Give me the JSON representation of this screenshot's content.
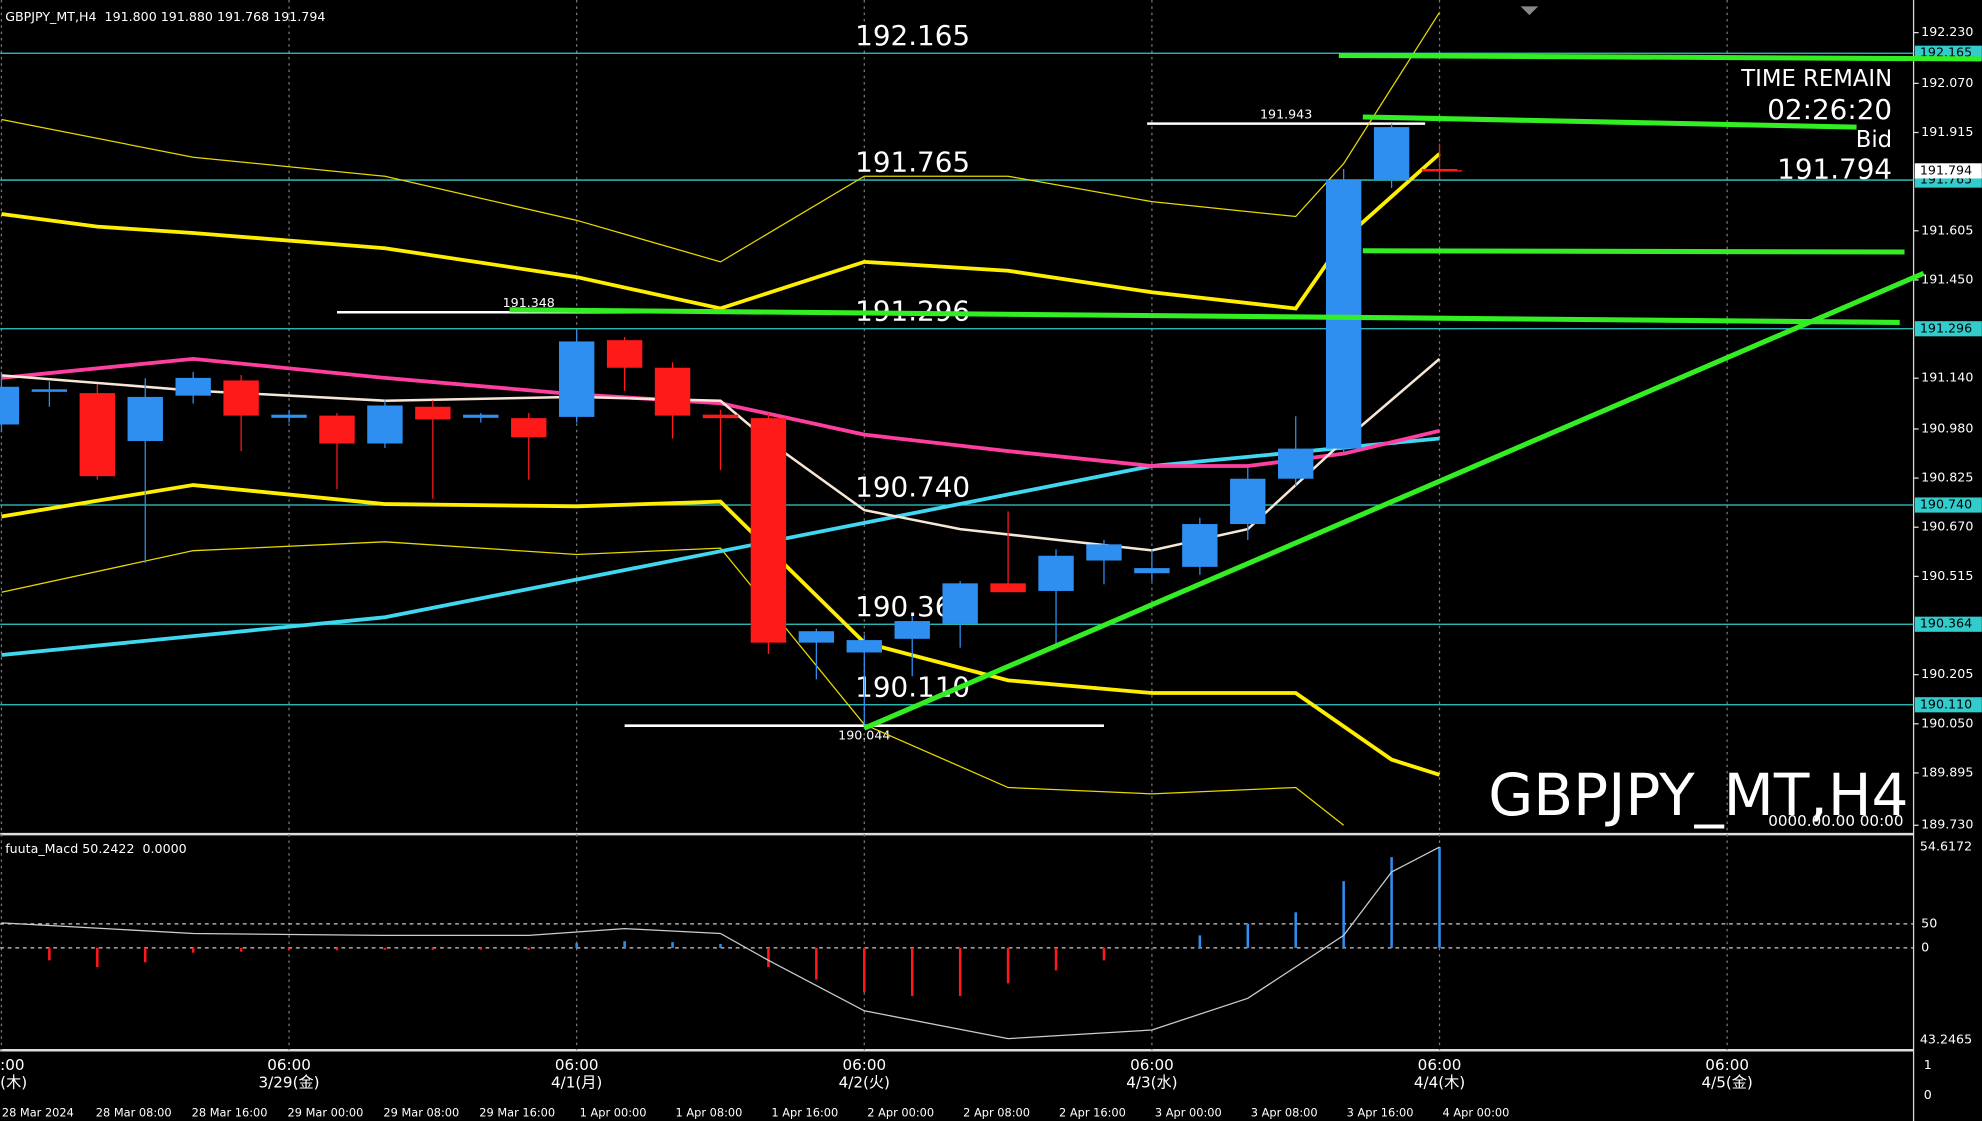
{
  "chart_data": {
    "type": "candlestick",
    "title": "GBPJPY_MT,H4  191.800 191.880 191.768 191.794",
    "watermark": "GBPJPY_MT,H4",
    "watermark_sub": "0000.00.00 00:00",
    "info": {
      "time_remain_label": "TIME REMAIN",
      "time_remain": "02:26:20",
      "bid_label": "Bid"
    },
    "bid": 191.794,
    "up_color": "#2f8ff0",
    "down_color": "#ff1a1a",
    "ylim": [
      189.71,
      192.313
    ],
    "yticks": [
      {
        "value": 192.23,
        "label": "192.230"
      },
      {
        "value": 192.07,
        "label": "192.070"
      },
      191.915,
      191.605,
      {
        "value": 191.45,
        "label": "191.450"
      },
      {
        "value": 191.14,
        "label": "191.140"
      },
      {
        "value": 190.98,
        "label": "190.980"
      },
      190.825,
      {
        "value": 190.67,
        "label": "190.670"
      },
      190.515,
      190.205,
      {
        "value": 190.05,
        "label": "190.050"
      },
      189.895,
      {
        "value": 189.73,
        "label": "189.730"
      }
    ],
    "x_labels": [
      {
        "time": ":00",
        "date": "(木)"
      },
      {
        "time": "06:00",
        "date": "3/29(金)"
      },
      {
        "time": "06:00",
        "date": "4/1(月)"
      },
      {
        "time": "06:00",
        "date": "4/2(火)"
      },
      {
        "time": "06:00",
        "date": "4/3(水)"
      },
      {
        "time": "06:00",
        "date": "4/4(木)"
      },
      {
        "time": "06:00",
        "date": "4/5(金)"
      }
    ],
    "bottom_labels": [
      "28 Mar 2024",
      "28 Mar 08:00",
      "28 Mar 16:00",
      "29 Mar 00:00",
      "29 Mar 08:00",
      "29 Mar 16:00",
      "1 Apr 00:00",
      "1 Apr 08:00",
      "1 Apr 16:00",
      "2 Apr 00:00",
      "2 Apr 08:00",
      "2 Apr 16:00",
      "3 Apr 00:00",
      "3 Apr 08:00",
      "3 Apr 16:00",
      "4 Apr 00:00"
    ],
    "candles": {
      "open": [
        190.994,
        191.1,
        191.093,
        190.942,
        191.085,
        191.133,
        191.015,
        191.022,
        190.934,
        191.05,
        191.015,
        191.014,
        191.018,
        191.26,
        191.173,
        191.025,
        191.014,
        190.306,
        190.275,
        190.318,
        190.366,
        190.493,
        190.469,
        190.565,
        190.525,
        190.545,
        190.68,
        190.823,
        190.918,
        191.765,
        191.8
      ],
      "high": [
        191.16,
        191.13,
        191.12,
        191.14,
        191.16,
        191.15,
        191.04,
        191.03,
        191.07,
        191.07,
        191.03,
        191.03,
        191.29,
        191.27,
        191.19,
        191.04,
        191.03,
        190.35,
        190.33,
        190.39,
        190.5,
        190.72,
        190.6,
        190.63,
        190.6,
        190.7,
        190.86,
        191.02,
        191.8,
        191.943,
        191.88
      ],
      "low": [
        190.97,
        191.05,
        190.82,
        190.557,
        191.06,
        190.91,
        191.0,
        190.79,
        190.92,
        190.76,
        191.0,
        190.82,
        191.0,
        191.1,
        190.95,
        190.85,
        190.27,
        190.19,
        190.044,
        190.2,
        190.29,
        190.48,
        190.29,
        190.49,
        190.5,
        190.52,
        190.63,
        190.8,
        190.9,
        191.74,
        191.768
      ],
      "close": [
        191.113,
        191.105,
        190.831,
        191.081,
        191.141,
        191.022,
        191.025,
        190.934,
        191.054,
        191.01,
        191.025,
        190.954,
        191.256,
        191.173,
        191.022,
        191.014,
        190.306,
        190.342,
        190.314,
        190.374,
        190.493,
        190.465,
        190.58,
        190.616,
        190.541,
        190.68,
        190.823,
        190.918,
        191.765,
        191.932,
        191.794
      ]
    },
    "overlays": [
      {
        "color": "#ffee00",
        "width": 3,
        "x": [
          0,
          2,
          4,
          8,
          12,
          15,
          18,
          21,
          24,
          27,
          28,
          30
        ],
        "values": [
          191.658,
          191.618,
          191.598,
          191.55,
          191.459,
          191.36,
          191.507,
          191.479,
          191.411,
          191.36,
          191.578,
          191.848
        ]
      },
      {
        "color": "#ffee00",
        "width": 3,
        "x": [
          0,
          4,
          8,
          12,
          15,
          18,
          21,
          24,
          27,
          29,
          30
        ],
        "values": [
          190.704,
          190.803,
          190.743,
          190.736,
          190.751,
          190.306,
          190.187,
          190.147,
          190.147,
          189.937,
          189.889
        ]
      },
      {
        "color": "#e6d800",
        "width": 1,
        "x": [
          0,
          4,
          8,
          12,
          15,
          18,
          21,
          24,
          27,
          28,
          30
        ],
        "values": [
          191.956,
          191.837,
          191.777,
          191.638,
          191.507,
          191.777,
          191.777,
          191.697,
          191.65,
          191.817,
          192.294
        ]
      },
      {
        "color": "#e6d800",
        "width": 1,
        "x": [
          0,
          4,
          8,
          12,
          15,
          18,
          21,
          24,
          27,
          28
        ],
        "values": [
          190.465,
          190.596,
          190.624,
          190.584,
          190.604,
          190.048,
          189.849,
          189.829,
          189.849,
          189.73
        ]
      },
      {
        "color": "#40d8f0",
        "width": 3,
        "x": [
          0,
          8,
          16,
          24,
          30
        ],
        "values": [
          190.267,
          190.386,
          190.624,
          190.863,
          190.95
        ]
      },
      {
        "color": "#ff3fa0",
        "width": 3,
        "x": [
          0,
          4,
          8,
          12,
          15,
          18,
          21,
          24,
          26,
          28,
          30
        ],
        "values": [
          191.141,
          191.201,
          191.141,
          191.089,
          191.061,
          190.962,
          190.91,
          190.863,
          190.863,
          190.902,
          190.974
        ]
      },
      {
        "color": "#f5e6d6",
        "width": 2,
        "x": [
          0,
          4,
          8,
          12,
          15,
          16,
          18,
          20,
          24,
          26,
          28,
          30
        ],
        "values": [
          191.149,
          191.101,
          191.069,
          191.081,
          191.069,
          190.942,
          190.724,
          190.664,
          190.597,
          190.664,
          190.942,
          191.201
        ]
      }
    ],
    "levels": [
      192.165,
      191.765,
      191.296,
      {
        "value": 190.74,
        "label": "190.740"
      },
      190.364,
      {
        "value": 190.11,
        "label": "190.110"
      }
    ],
    "segments": [
      {
        "value": 191.943,
        "x": [
          23.9,
          29.7
        ]
      },
      {
        "value": 191.348,
        "x": [
          7,
          15
        ]
      },
      {
        "value": 190.044,
        "x": [
          13,
          23
        ]
      }
    ],
    "trendlines": [
      {
        "x": [
          27.9,
          41.3
        ],
        "values": [
          192.158,
          192.147
        ]
      },
      {
        "x": [
          28.4,
          38.7
        ],
        "values": [
          191.964,
          191.932
        ]
      },
      {
        "x": [
          28.4,
          39.7
        ],
        "values": [
          191.542,
          191.538
        ]
      },
      {
        "x": [
          10.6,
          39.6
        ],
        "values": [
          191.356,
          191.316
        ]
      },
      {
        "x": [
          18,
          40.1
        ],
        "values": [
          190.036,
          191.471
        ]
      }
    ],
    "macd": {
      "label": "fuuta_Macd 50.2422  0.0000",
      "top_label": "54.6172",
      "bottom_label": "43.2465",
      "ylim": [
        -210.5,
        231.6
      ],
      "yticks": [
        50,
        0
      ],
      "histogram": [
        null,
        -26,
        -40,
        -30,
        -10,
        -8,
        -5,
        -5,
        -4,
        -4,
        -4,
        -4,
        10,
        14,
        12,
        8,
        -40,
        -66,
        -92,
        -100,
        -100,
        -74,
        -47,
        -26,
        null,
        26,
        50,
        74,
        139,
        189,
        210
      ],
      "signal": {
        "x": [
          0,
          4,
          8,
          11,
          13,
          15,
          16,
          18,
          21,
          24,
          26,
          28,
          29,
          30
        ],
        "values": [
          52,
          30,
          26,
          26,
          40,
          30,
          -26,
          -131,
          -189,
          -171,
          -105,
          26,
          158,
          210
        ]
      }
    },
    "corner_labels": [
      "1",
      "0"
    ]
  }
}
